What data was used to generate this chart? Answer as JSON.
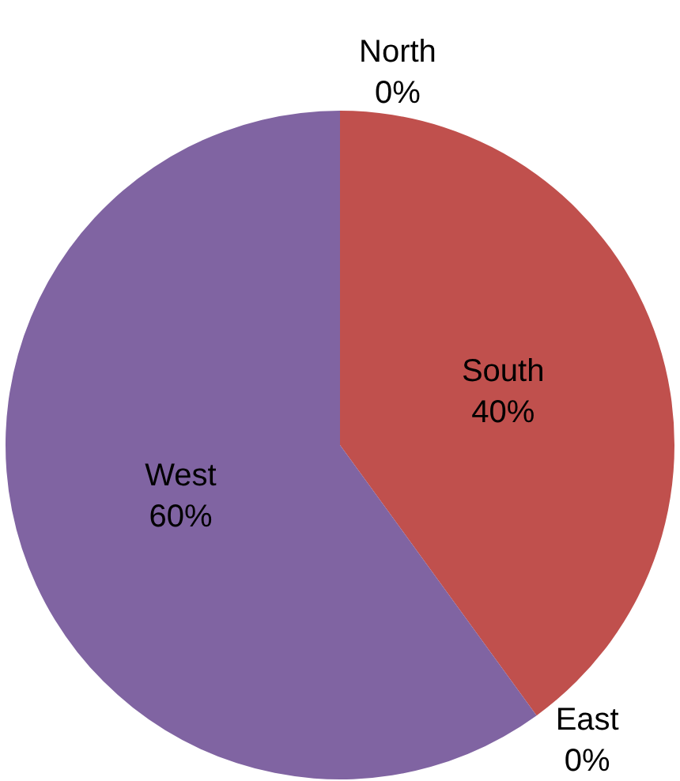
{
  "chart_data": {
    "type": "pie",
    "categories": [
      "North",
      "South",
      "East",
      "West"
    ],
    "values": [
      0,
      40,
      0,
      60
    ],
    "value_labels": [
      "0%",
      "40%",
      "0%",
      "60%"
    ],
    "colors": [
      "#4f81bd",
      "#c0504d",
      "#9bbb59",
      "#8064a2"
    ],
    "legend": false
  }
}
